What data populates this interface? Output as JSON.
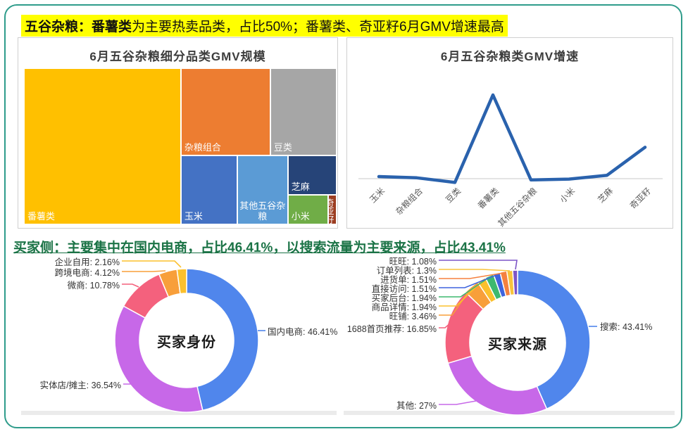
{
  "headers": {
    "top": {
      "bold": "五谷杂粮：番薯类",
      "rest": "为主要热卖品类，占比50%；番薯类、奇亚籽6月GMV增速最高",
      "highlight_color": "#ffff00",
      "text_color": "#111111"
    },
    "buyer": {
      "text": "买家侧：主要集中在国内电商，占比46.41%，以搜索流量为主要来源，占比43.41%",
      "color": "#1b7346"
    }
  },
  "page": {
    "border_color": "#2f9c8b",
    "background": "#ffffff"
  },
  "chart_data": [
    {
      "type": "treemap",
      "title": "6月五谷杂粮细分品类GMV规模",
      "items": [
        {
          "label": "番薯类",
          "value": 50.0,
          "color": "#FFC000"
        },
        {
          "label": "杂粮组合",
          "value": 16.0,
          "color": "#ED7D31"
        },
        {
          "label": "豆类",
          "value": 11.8,
          "color": "#A6A6A6"
        },
        {
          "label": "玉米",
          "value": 7.8,
          "color": "#4472C4"
        },
        {
          "label": "其他五谷杂粮",
          "value": 6.9,
          "color": "#5B9BD5"
        },
        {
          "label": "芝麻",
          "value": 3.7,
          "color": "#264478"
        },
        {
          "label": "小米",
          "value": 2.3,
          "color": "#70AD47"
        },
        {
          "label": "奇亚籽",
          "value": 0.4,
          "color": "#9C3E22"
        }
      ],
      "value_unit": "% of GMV (share estimated from block area; 番薯类 stated as 50%)"
    },
    {
      "type": "line",
      "title": "6月五谷杂粮类GMV增速",
      "categories": [
        "玉米",
        "杂粮组合",
        "豆类",
        "番薯类",
        "其他五谷杂粮",
        "小米",
        "芝麻",
        "奇亚籽"
      ],
      "values": [
        2.5,
        1,
        -4.5,
        100,
        -1.5,
        -0.5,
        4,
        37.5
      ],
      "value_scale": "relative growth, y-axis unlabeled, peak (番薯类) normalized to 100",
      "ylim": [
        -10,
        110
      ],
      "line_color": "#2a62ad",
      "axis_color": "#c9c9c9",
      "grid": false,
      "legend": false
    },
    {
      "type": "pie",
      "subtype": "donut",
      "title": "买家身份",
      "segments": [
        {
          "label": "国内电商",
          "value": 46.41,
          "color": "#5086EC"
        },
        {
          "label": "实体店/摊主",
          "value": 36.54,
          "color": "#C768E8"
        },
        {
          "label": "微商",
          "value": 10.78,
          "color": "#F4617D"
        },
        {
          "label": "跨境电商",
          "value": 4.12,
          "color": "#F89F3A"
        },
        {
          "label": "企业自用",
          "value": 2.16,
          "color": "#FBC02D"
        }
      ],
      "label_format": "名称: 百分比%",
      "start_angle": "top, clockwise"
    },
    {
      "type": "pie",
      "subtype": "donut",
      "title": "买家来源",
      "segments": [
        {
          "label": "搜索",
          "value": 43.41,
          "color": "#5086EC"
        },
        {
          "label": "其他",
          "value": 27,
          "color": "#C768E8"
        },
        {
          "label": "1688首页推荐",
          "value": 16.85,
          "color": "#F4617D"
        },
        {
          "label": "旺铺",
          "value": 3.46,
          "color": "#F89F3A"
        },
        {
          "label": "商品详情",
          "value": 1.94,
          "color": "#FBC02D"
        },
        {
          "label": "买家后台",
          "value": 1.94,
          "color": "#3CB96E"
        },
        {
          "label": "直接访问",
          "value": 1.51,
          "color": "#3E64DE"
        },
        {
          "label": "进货单",
          "value": 1.51,
          "color": "#F5813F"
        },
        {
          "label": "订单列表",
          "value": 1.3,
          "color": "#F8C33C"
        },
        {
          "label": "旺旺",
          "value": 1.08,
          "color": "#7D55C7"
        }
      ],
      "label_format": "名称: 百分比%",
      "start_angle": "top, clockwise"
    }
  ]
}
